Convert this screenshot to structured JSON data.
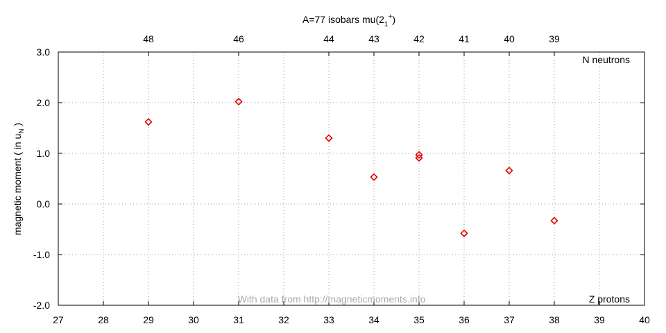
{
  "chart_data": {
    "type": "scatter",
    "title": "A=77 isobars mu(2",
    "title_sub": "1",
    "title_sup": "+",
    "title_close": ")",
    "xlabel": "Z protons",
    "ylabel": "magnetic moment ( in u",
    "ylabel_sub": "N",
    "ylabel_close": " )",
    "top_axis_label": "N neutrons",
    "watermark": "With data from http://magneticmoments.info",
    "xlim": [
      27,
      40
    ],
    "ylim": [
      -2.0,
      3.0
    ],
    "x_ticks": [
      27,
      28,
      29,
      30,
      31,
      32,
      33,
      34,
      35,
      36,
      37,
      38,
      39,
      40
    ],
    "y_ticks": [
      {
        "value": -2.0,
        "label": "-2.0"
      },
      {
        "value": -1.0,
        "label": "-1.0"
      },
      {
        "value": 0.0,
        "label": "0.0"
      },
      {
        "value": 1.0,
        "label": "1.0"
      },
      {
        "value": 2.0,
        "label": "2.0"
      },
      {
        "value": 3.0,
        "label": "3.0"
      }
    ],
    "top_ticks": [
      {
        "z": 29,
        "label": "48"
      },
      {
        "z": 31,
        "label": "46"
      },
      {
        "z": 33,
        "label": "44"
      },
      {
        "z": 34,
        "label": "43"
      },
      {
        "z": 35,
        "label": "42"
      },
      {
        "z": 36,
        "label": "41"
      },
      {
        "z": 37,
        "label": "40"
      },
      {
        "z": 38,
        "label": "39"
      }
    ],
    "grid": true,
    "marker": "diamond",
    "marker_color": "#e00000",
    "points": [
      {
        "x": 29,
        "y": 1.62
      },
      {
        "x": 31,
        "y": 2.02
      },
      {
        "x": 33,
        "y": 1.3
      },
      {
        "x": 34,
        "y": 0.53
      },
      {
        "x": 35,
        "y": 0.97
      },
      {
        "x": 35,
        "y": 0.91
      },
      {
        "x": 36,
        "y": -0.58
      },
      {
        "x": 37,
        "y": 0.66
      },
      {
        "x": 38,
        "y": -0.33
      }
    ]
  }
}
